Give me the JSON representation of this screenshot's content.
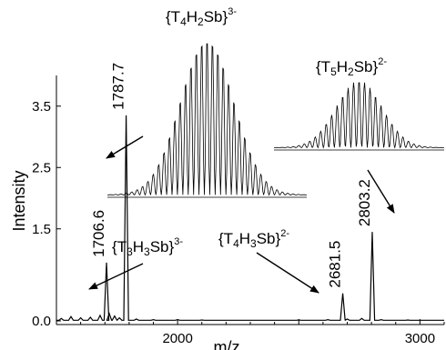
{
  "chart_data": {
    "type": "line",
    "xlabel": "m/z",
    "ylabel": "Intensity",
    "xlim": [
      1500,
      3100
    ],
    "ylim": [
      0,
      4.0
    ],
    "x_ticks": [
      2000,
      3000
    ],
    "x_tick_labels": [
      "2000",
      "3000"
    ],
    "y_ticks": [
      0.0,
      1.5,
      2.5,
      3.5
    ],
    "y_tick_labels": [
      "0.0",
      "1.5",
      "2.5",
      "3.5"
    ],
    "grid": false,
    "peaks": [
      {
        "mz": 1706.6,
        "intensity": 0.95,
        "label": "1706.6"
      },
      {
        "mz": 1787.7,
        "intensity": 3.35,
        "label": "1787.7"
      },
      {
        "mz": 2681.5,
        "intensity": 0.45,
        "label": "2681.5"
      },
      {
        "mz": 2803.2,
        "intensity": 1.45,
        "label": "2803.2"
      }
    ],
    "annotations": [
      {
        "id": "t3h3sb",
        "text_main": "{T3H3Sb}",
        "charge": "3-"
      },
      {
        "id": "t4h3sb",
        "text_main": "{T4H3Sb}",
        "charge": "2-"
      },
      {
        "id": "t4h2sb",
        "text_main": "{T4H2Sb}",
        "charge": "3-"
      },
      {
        "id": "t5h2sb",
        "text_main": "{T5H2Sb}",
        "charge": "2-"
      }
    ],
    "insets": [
      {
        "id": "inset-t4h2sb",
        "label": "{T4H2Sb}3-",
        "n_isotope_peaks": 34
      },
      {
        "id": "inset-t5h2sb",
        "label": "{T5H2Sb}2-",
        "n_isotope_peaks": 28
      }
    ]
  }
}
